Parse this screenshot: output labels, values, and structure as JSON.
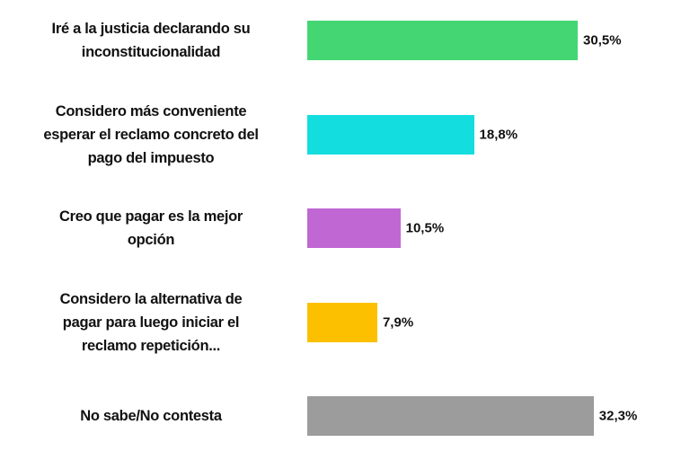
{
  "chart_data": {
    "type": "bar",
    "orientation": "horizontal",
    "title": "",
    "xlabel": "",
    "ylabel": "",
    "xlim": [
      0,
      35
    ],
    "grid": false,
    "categories": [
      [
        "Iré a la justicia declarando su",
        "inconstitucionalidad"
      ],
      [
        "Considero más conveniente",
        "esperar el reclamo concreto del",
        "pago del impuesto"
      ],
      [
        "Creo que pagar es la mejor",
        "opción"
      ],
      [
        "Considero la alternativa de",
        "pagar para luego iniciar el",
        "reclamo repetición..."
      ],
      [
        "No sabe/No contesta"
      ]
    ],
    "values": [
      30.5,
      18.8,
      10.5,
      7.9,
      32.3
    ],
    "value_labels": [
      "30,5%",
      "18,8%",
      "10,5%",
      "7,9%",
      "32,3%"
    ],
    "colors": [
      "#44d672",
      "#14dde0",
      "#c067d3",
      "#fcc000",
      "#9c9c9c"
    ]
  }
}
